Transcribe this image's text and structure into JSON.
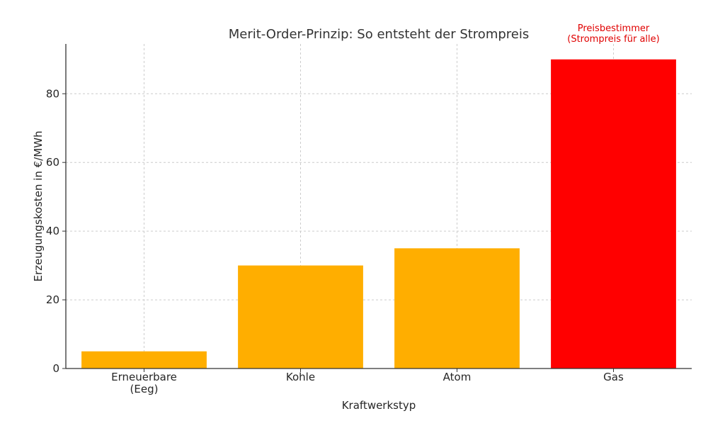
{
  "chart_data": {
    "type": "bar",
    "title": "Merit-Order-Prinzip: So entsteht der Strompreis",
    "xlabel": "Kraftwerkstyp",
    "ylabel": "Erzeugungskosten in €/MWh",
    "categories": [
      [
        "Erneuerbare",
        "(Eeg)"
      ],
      [
        "Kohle"
      ],
      [
        "Atom"
      ],
      [
        "Gas"
      ]
    ],
    "values": [
      5,
      30,
      35,
      90
    ],
    "bar_colors": [
      "#FFAE00",
      "#FFAE00",
      "#FFAE00",
      "#FF0000"
    ],
    "yticks": [
      0,
      20,
      40,
      60,
      80
    ],
    "ylim": [
      0,
      94.5
    ],
    "grid": true,
    "annotation": {
      "lines": [
        "Preisbestimmer",
        "(Strompreis für alle)"
      ],
      "category_index": 3,
      "color": "#E00000"
    }
  }
}
